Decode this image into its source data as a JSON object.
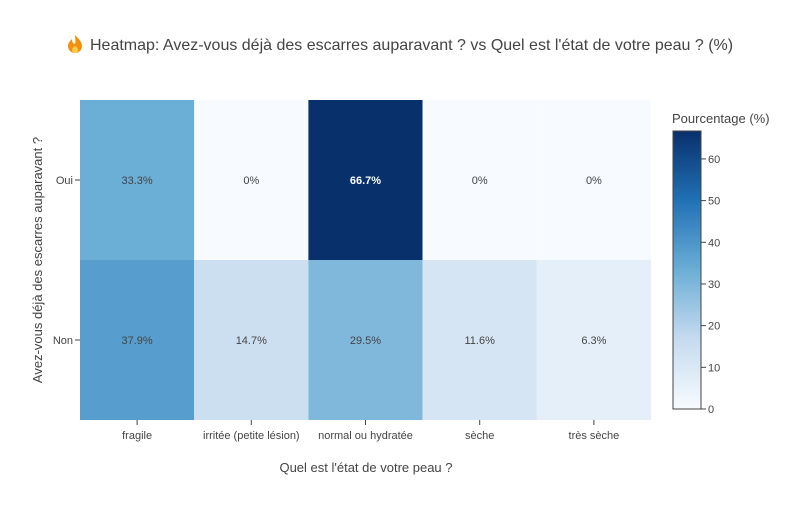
{
  "chart_data": {
    "type": "heatmap",
    "title": "Heatmap: Avez-vous déjà des escarres auparavant ? vs Quel est l'état de votre peau ? (%)",
    "title_icon": "fire-icon",
    "xlabel": "Quel est l'état de votre peau ?",
    "ylabel": "Avez-vous déjà des escarres auparavant ?",
    "x_categories": [
      "fragile",
      "irritée (petite lésion)",
      "normal ou hydratée",
      "sèche",
      "très sèche"
    ],
    "y_categories": [
      "Oui",
      "Non"
    ],
    "values": [
      [
        33.3,
        0,
        66.7,
        0,
        0
      ],
      [
        37.9,
        14.7,
        29.5,
        11.6,
        6.3
      ]
    ],
    "cell_labels": [
      [
        "33.3%",
        "0%",
        "66.7%",
        "0%",
        "0%"
      ],
      [
        "37.9%",
        "14.7%",
        "29.5%",
        "11.6%",
        "6.3%"
      ]
    ],
    "colorscale": "Blues",
    "colorscale_stops": [
      "#f7fbff",
      "#c6dbef",
      "#6baed6",
      "#2171b5",
      "#08306b"
    ],
    "zmin": 0,
    "zmax": 66.7,
    "colorbar": {
      "title": "Pourcentage (%)",
      "ticks": [
        0,
        10,
        20,
        30,
        40,
        50,
        60
      ],
      "tick_labels": [
        "0",
        "10",
        "20",
        "30",
        "40",
        "50",
        "60"
      ]
    },
    "grid": false
  }
}
